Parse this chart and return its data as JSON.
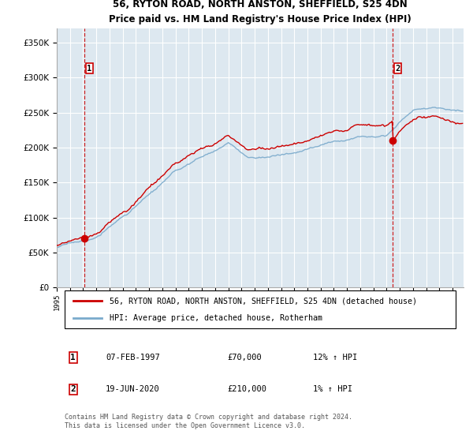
{
  "title1": "56, RYTON ROAD, NORTH ANSTON, SHEFFIELD, S25 4DN",
  "title2": "Price paid vs. HM Land Registry's House Price Index (HPI)",
  "ylabel_ticks": [
    "£0",
    "£50K",
    "£100K",
    "£150K",
    "£200K",
    "£250K",
    "£300K",
    "£350K"
  ],
  "ytick_vals": [
    0,
    50000,
    100000,
    150000,
    200000,
    250000,
    300000,
    350000
  ],
  "ylim": [
    0,
    370000
  ],
  "xlim_start": 1995.0,
  "xlim_end": 2025.83,
  "background_color": "#dde8f0",
  "grid_color": "#ffffff",
  "sale1_year": 1997.09,
  "sale1_price": 70000,
  "sale2_year": 2020.46,
  "sale2_price": 210000,
  "sale1_label": "07-FEB-1997",
  "sale1_price_str": "£70,000",
  "sale1_hpi": "12% ↑ HPI",
  "sale2_label": "19-JUN-2020",
  "sale2_price_str": "£210,000",
  "sale2_hpi": "1% ↑ HPI",
  "legend_line1": "56, RYTON ROAD, NORTH ANSTON, SHEFFIELD, S25 4DN (detached house)",
  "legend_line2": "HPI: Average price, detached house, Rotherham",
  "footnote1": "Contains HM Land Registry data © Crown copyright and database right 2024.",
  "footnote2": "This data is licensed under the Open Government Licence v3.0.",
  "line_color_red": "#cc0000",
  "line_color_blue": "#7aaacc",
  "marker_color": "#cc0000",
  "dashed_color": "#cc0000",
  "box_color": "#cc0000"
}
